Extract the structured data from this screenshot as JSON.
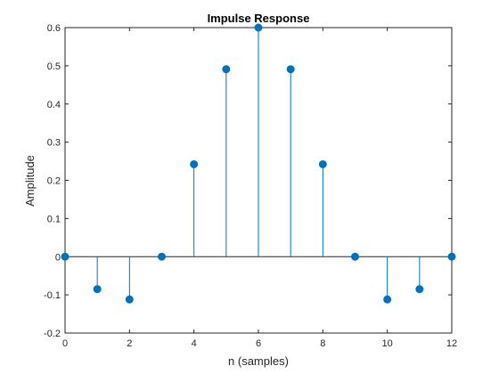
{
  "chart_data": {
    "type": "stem",
    "title": "Impulse Response",
    "xlabel": "n (samples)",
    "ylabel": "Amplitude",
    "xlim": [
      0,
      12
    ],
    "ylim": [
      -0.2,
      0.6
    ],
    "xticks": [
      "0",
      "2",
      "4",
      "6",
      "8",
      "10",
      "12"
    ],
    "yticks": [
      "-0.2",
      "-0.1",
      "0",
      "0.1",
      "0.2",
      "0.3",
      "0.4",
      "0.5",
      "0.6"
    ],
    "x": [
      0,
      1,
      2,
      3,
      4,
      5,
      6,
      7,
      8,
      9,
      10,
      11,
      12
    ],
    "values": [
      0,
      -0.085,
      -0.112,
      0,
      0.242,
      0.491,
      0.6,
      0.491,
      0.242,
      0,
      -0.112,
      -0.085,
      0
    ],
    "color": "#0072BD",
    "grid": false,
    "box": true
  }
}
